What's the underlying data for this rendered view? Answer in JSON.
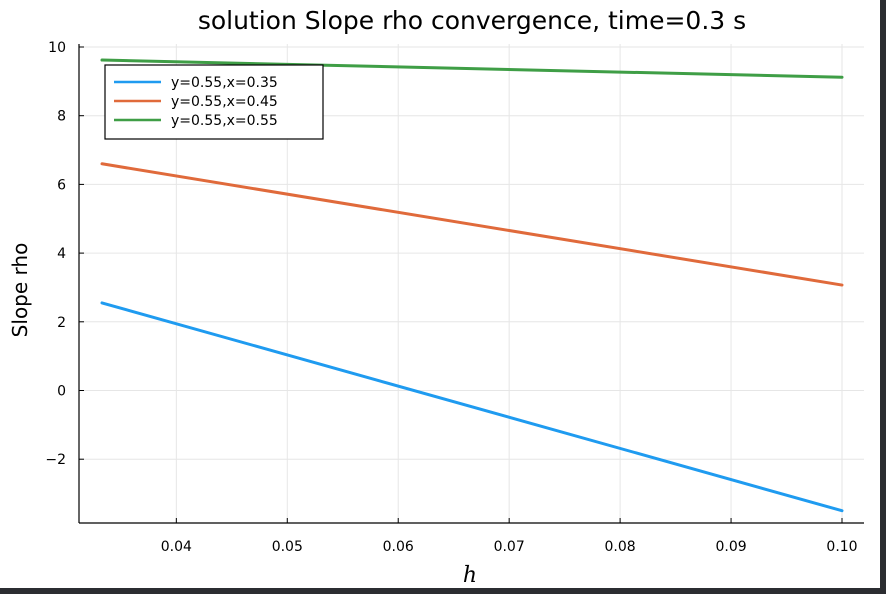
{
  "chart_data": {
    "type": "line",
    "title": "solution Slope rho convergence, time=0.3 s",
    "xlabel": "h",
    "ylabel": "Slope rho",
    "xlim": [
      0.0333,
      0.1
    ],
    "ylim": [
      -3.8,
      10
    ],
    "xticks": [
      0.04,
      0.05,
      0.06,
      0.07,
      0.08,
      0.09,
      0.1
    ],
    "xtick_labels": [
      "0.04",
      "0.05",
      "0.06",
      "0.07",
      "0.08",
      "0.09",
      "0.10"
    ],
    "yticks": [
      -2,
      0,
      2,
      4,
      6,
      8,
      10
    ],
    "ytick_labels": [
      "−2",
      "0",
      "2",
      "4",
      "6",
      "8",
      "10"
    ],
    "grid": true,
    "legend_position": "top-left",
    "series": [
      {
        "name": "y=0.55,x=0.35",
        "color": "#1f9bf0",
        "x": [
          0.0333,
          0.1
        ],
        "y": [
          2.55,
          -3.5
        ]
      },
      {
        "name": "y=0.55,x=0.45",
        "color": "#e06a3b",
        "x": [
          0.0333,
          0.1
        ],
        "y": [
          6.6,
          3.07
        ]
      },
      {
        "name": "y=0.55,x=0.55",
        "color": "#3f9e46",
        "x": [
          0.0333,
          0.1
        ],
        "y": [
          9.62,
          9.12
        ]
      }
    ]
  }
}
